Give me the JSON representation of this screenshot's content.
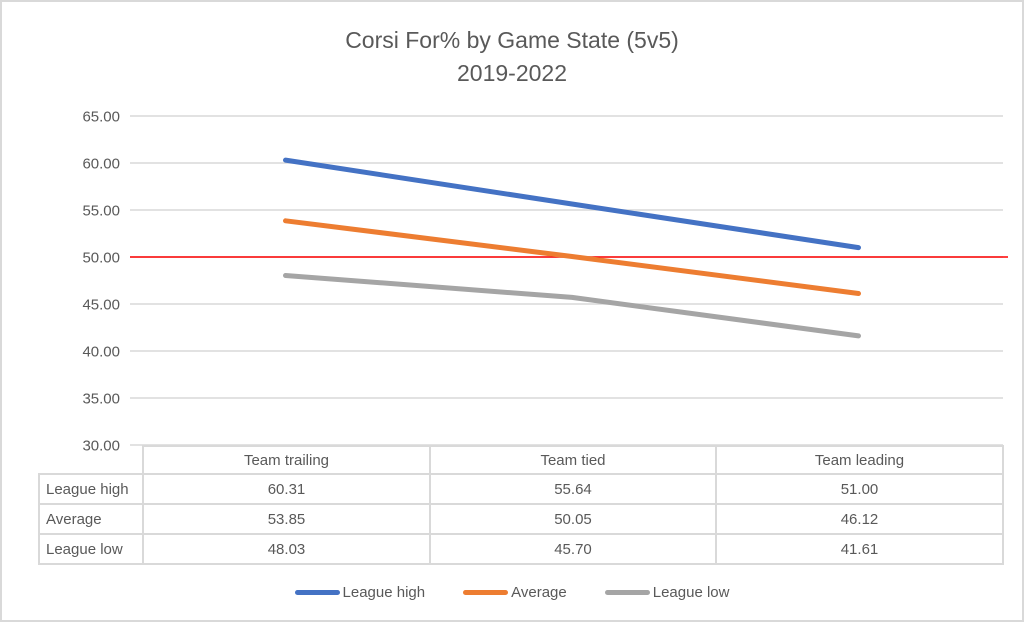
{
  "title": "Corsi For% by Game State (5v5)",
  "subtitle": "2019-2022",
  "chart_data": {
    "type": "line",
    "title": "Corsi For% by Game State (5v5)",
    "subtitle": "2019-2022",
    "categories": [
      "Team trailing",
      "Team tied",
      "Team leading"
    ],
    "series": [
      {
        "name": "League high",
        "color": "#4472C4",
        "values": [
          60.31,
          55.64,
          51.0
        ]
      },
      {
        "name": "Average",
        "color": "#ED7D31",
        "values": [
          53.85,
          50.05,
          46.12
        ]
      },
      {
        "name": "League low",
        "color": "#A5A5A5",
        "values": [
          48.03,
          45.7,
          41.61
        ]
      }
    ],
    "reference_line": {
      "value": 50.0,
      "color": "#FF0000"
    },
    "ylim": [
      30,
      65
    ],
    "ytick_step": 5,
    "ytick_decimals": 2,
    "grid": true,
    "gridline_color": "#D9D9D9",
    "axis_text_color": "#595959",
    "legend_position": "bottom",
    "data_table_shown": true
  },
  "table": {
    "column_headers": [
      "Team trailing",
      "Team tied",
      "Team leading"
    ],
    "rows": [
      {
        "label": "League high",
        "values": [
          "60.31",
          "55.64",
          "51.00"
        ]
      },
      {
        "label": "Average",
        "values": [
          "53.85",
          "50.05",
          "46.12"
        ]
      },
      {
        "label": "League low",
        "values": [
          "48.03",
          "45.70",
          "41.61"
        ]
      }
    ]
  },
  "legend": {
    "items": [
      {
        "label": "League high",
        "color": "#4472C4"
      },
      {
        "label": "Average",
        "color": "#ED7D31"
      },
      {
        "label": "League low",
        "color": "#A5A5A5"
      }
    ]
  }
}
